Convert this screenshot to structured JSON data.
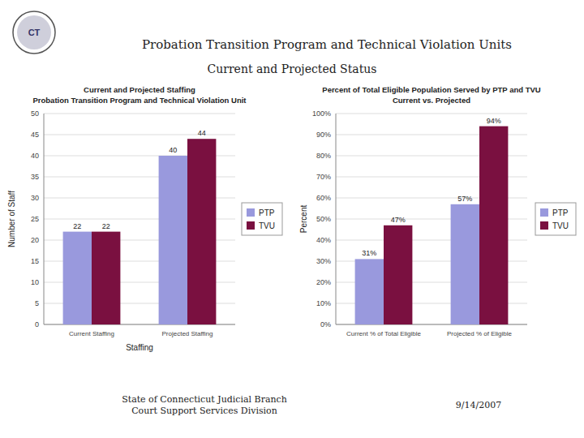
{
  "title": "Probation Transition Program and Technical Violation Units",
  "subtitle": "Current and Projected Status",
  "annotations": [
    "CT",
    "State of Connecticut Judicial Branch\nCourt Support Services Division",
    "9/14/2007"
  ],
  "chart_data": [
    {
      "type": "bar",
      "title": "Current and Projected Staffing",
      "subtitle": "Probation Transition Program and Technical Violation Unit",
      "categories": [
        "Current Staffing",
        "Projected Staffing"
      ],
      "x_label": "Staffing",
      "y_label": "Number of Staff",
      "ylim": [
        0,
        50
      ],
      "yticks": [
        0,
        5,
        10,
        15,
        20,
        25,
        30,
        35,
        40,
        45,
        50
      ],
      "series": [
        {
          "name": "PTP",
          "color": "#9999dd",
          "values": [
            22,
            40
          ]
        },
        {
          "name": "TVU",
          "color": "#7a1040",
          "values": [
            22,
            44
          ]
        }
      ],
      "grid": true,
      "legend": "right",
      "data_labels": true
    },
    {
      "type": "bar",
      "title": "Percent of Total Eligible Population Served by PTP and TVU",
      "subtitle": "Current vs. Projected",
      "categories": [
        "Current % of Total Eligible",
        "Projected % of Eligible"
      ],
      "y_label": "Percent",
      "ylim": [
        0,
        1.0
      ],
      "yticks": [
        {
          "value": 0.0,
          "label": "0%"
        },
        {
          "value": 0.1,
          "label": "10%"
        },
        {
          "value": 0.2,
          "label": "20%"
        },
        {
          "value": 0.3,
          "label": "30%"
        },
        {
          "value": 0.4,
          "label": "40%"
        },
        {
          "value": 0.5,
          "label": "50%"
        },
        {
          "value": 0.6,
          "label": "60%"
        },
        {
          "value": 0.7,
          "label": "70%"
        },
        {
          "value": 0.8,
          "label": "80%"
        },
        {
          "value": 0.9,
          "label": "90%"
        },
        {
          "value": 1.0,
          "label": "100%"
        }
      ],
      "series": [
        {
          "name": "PTP",
          "color": "#9999dd",
          "values": [
            0.31,
            0.57
          ],
          "value_labels": [
            "31%",
            "57%"
          ]
        },
        {
          "name": "TVU",
          "color": "#7a1040",
          "values": [
            0.47,
            0.94
          ],
          "value_labels": [
            "47%",
            "94%"
          ]
        }
      ],
      "grid": true,
      "legend": "right",
      "data_labels": true
    }
  ]
}
